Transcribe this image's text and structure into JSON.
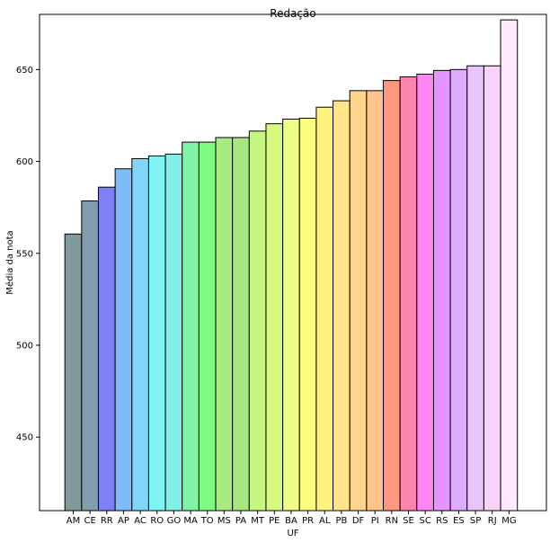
{
  "chart_data": {
    "type": "bar",
    "title": "Redação",
    "xlabel": "UF",
    "ylabel": "Média da nota",
    "ylim": [
      410,
      680
    ],
    "yticks": [
      450,
      500,
      550,
      600,
      650
    ],
    "grid": false,
    "categories": [
      "AM",
      "CE",
      "RR",
      "AP",
      "AC",
      "RO",
      "GO",
      "MA",
      "TO",
      "MS",
      "PA",
      "MT",
      "PE",
      "BA",
      "PR",
      "AL",
      "PB",
      "DF",
      "PI",
      "RN",
      "SE",
      "SC",
      "RS",
      "ES",
      "SP",
      "RJ",
      "MG"
    ],
    "values": [
      560.5,
      578.5,
      586,
      596,
      601.5,
      603,
      604,
      610.5,
      610.5,
      613,
      613,
      616.5,
      620.5,
      623,
      623.5,
      629.5,
      633,
      638.5,
      638.5,
      644,
      646,
      647.5,
      649.5,
      650,
      652,
      652,
      677
    ],
    "colors": [
      "#7f9b9b",
      "#829dae",
      "#8080f6",
      "#7fbbf7",
      "#7fd6f8",
      "#7ff4f4",
      "#7ff0e3",
      "#7ff3a6",
      "#81fa82",
      "#a7ec7f",
      "#a8e680",
      "#c5f67f",
      "#d8f97f",
      "#eefd84",
      "#fdfd7f",
      "#fff07f",
      "#ffe488",
      "#ffd58e",
      "#ffc48a",
      "#ff9680",
      "#ff85ad",
      "#ff85f4",
      "#e694ff",
      "#ddacfa",
      "#e8c4f9",
      "#f8d2f8",
      "#ffeafe"
    ]
  }
}
